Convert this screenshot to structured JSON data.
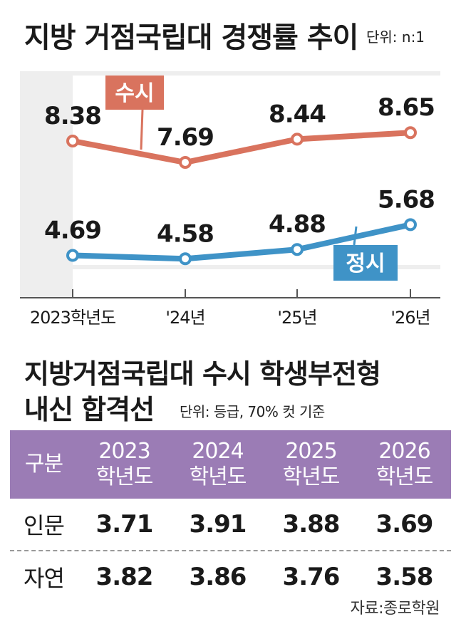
{
  "chart_title": "지방 거점국립대 경쟁률 추이",
  "chart_unit": "단위: n:1",
  "chart_data": {
    "type": "line",
    "title": "지방 거점국립대 경쟁률 추이",
    "categories": [
      "2023학년도",
      "'24년",
      "'25년",
      "'26년"
    ],
    "series": [
      {
        "name": "수시",
        "values": [
          8.38,
          7.69,
          8.44,
          8.65
        ],
        "labels": [
          "8.38",
          "7.69",
          "8.44",
          "8.65"
        ],
        "color": "#d9735e"
      },
      {
        "name": "정시",
        "values": [
          4.69,
          4.58,
          4.88,
          5.68
        ],
        "labels": [
          "4.69",
          "4.58",
          "4.88",
          "5.68"
        ],
        "color": "#3f93c7"
      }
    ],
    "grid": false,
    "legend": "inline"
  },
  "table_title_line1": "지방거점국립대 수시 학생부전형",
  "table_title_line2": "내신 합격선",
  "table_unit": "단위: 등급, 70% 컷 기준",
  "table": {
    "header": {
      "label": "구분",
      "years": [
        {
          "year": "2023",
          "suffix": "학년도"
        },
        {
          "year": "2024",
          "suffix": "학년도"
        },
        {
          "year": "2025",
          "suffix": "학년도"
        },
        {
          "year": "2026",
          "suffix": "학년도"
        }
      ]
    },
    "rows": [
      {
        "label": "인문",
        "values": [
          "3.71",
          "3.91",
          "3.88",
          "3.69"
        ]
      },
      {
        "label": "자연",
        "values": [
          "3.82",
          "3.86",
          "3.76",
          "3.58"
        ]
      }
    ]
  },
  "source": "자료:종로학원",
  "colors": {
    "susi": "#d9735e",
    "jeongsi": "#3f93c7",
    "table_header": "#9b7cb5",
    "plot_bg": "#eeeeee"
  }
}
